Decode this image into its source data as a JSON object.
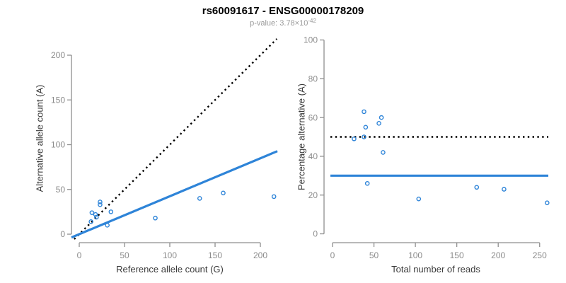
{
  "header": {
    "title": "rs60091617 - ENSG00000178209",
    "subtitle_prefix": "p-value: 3.78×10",
    "subtitle_exponent": "-42"
  },
  "colors": {
    "accent_blue": "#2e84d8",
    "dashed_black": "#000000",
    "axis_gray": "#8f8f8f",
    "tick_label_gray": "#8c8c8c",
    "axis_title_gray": "#3a3a3a",
    "subtitle_gray": "#999999"
  },
  "chart_data": [
    {
      "id": "allele-counts",
      "type": "scatter",
      "xlabel": "Reference allele count (G)",
      "ylabel": "Alternative allele count (A)",
      "xlim": [
        0,
        218
      ],
      "ylim": [
        0,
        215
      ],
      "xticks": [
        0,
        50,
        100,
        150,
        200
      ],
      "yticks": [
        0,
        50,
        100,
        150,
        200
      ],
      "grid": false,
      "points": [
        [
          23,
          36
        ],
        [
          23,
          33
        ],
        [
          14,
          24
        ],
        [
          18,
          22
        ],
        [
          19,
          19
        ],
        [
          13,
          14
        ],
        [
          35,
          25
        ],
        [
          31,
          10
        ],
        [
          84,
          18
        ],
        [
          133,
          40
        ],
        [
          159,
          46
        ],
        [
          215,
          42
        ]
      ],
      "lines": [
        {
          "name": "identity-line",
          "style": "dashed",
          "slope": 1,
          "intercept": 0
        },
        {
          "name": "fit-line",
          "style": "solid",
          "slope": 0.424,
          "intercept": 0
        }
      ]
    },
    {
      "id": "percentage-vs-reads",
      "type": "scatter",
      "xlabel": "Total number of reads",
      "ylabel": "Percentage alternative (A)",
      "xlim": [
        0,
        261
      ],
      "ylim": [
        0,
        100
      ],
      "xticks": [
        0,
        50,
        100,
        150,
        200,
        250
      ],
      "yticks": [
        0,
        20,
        40,
        60,
        80,
        100
      ],
      "grid": false,
      "points": [
        [
          59,
          60
        ],
        [
          56,
          57
        ],
        [
          38,
          63
        ],
        [
          40,
          55
        ],
        [
          38,
          50
        ],
        [
          26,
          49
        ],
        [
          61,
          42
        ],
        [
          42,
          26
        ],
        [
          104,
          18
        ],
        [
          174,
          24
        ],
        [
          207,
          23
        ],
        [
          259,
          16
        ]
      ],
      "lines": [
        {
          "name": "expected-50pct-line",
          "style": "dashed",
          "y": 50
        },
        {
          "name": "observed-30pct-line",
          "style": "solid",
          "y": 30
        }
      ]
    }
  ]
}
